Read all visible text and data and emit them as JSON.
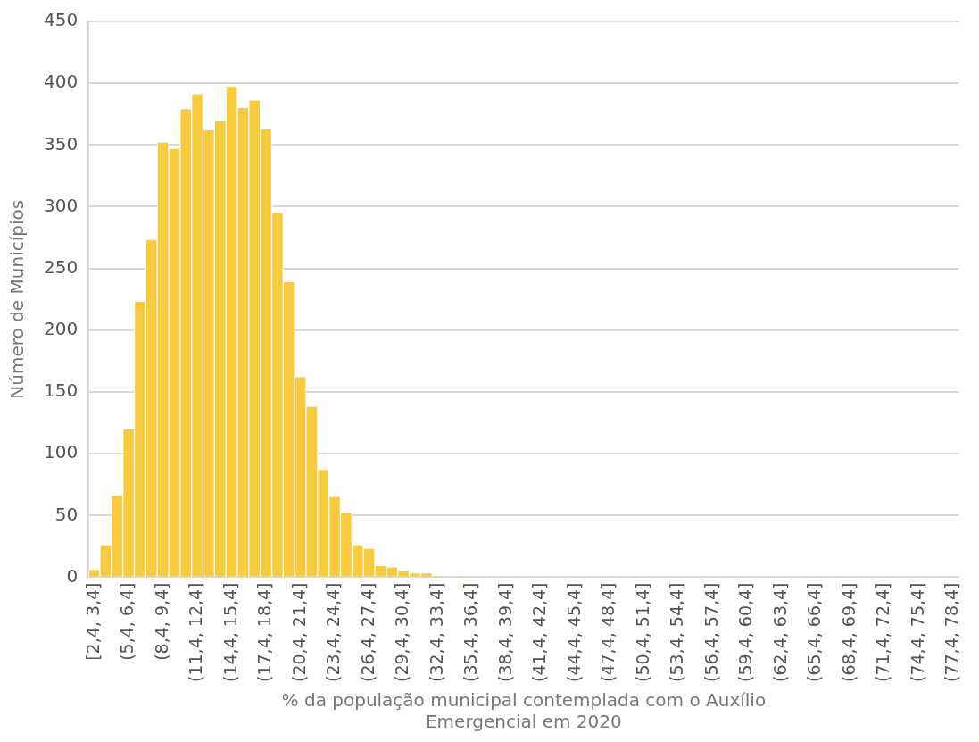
{
  "chart_data": {
    "type": "bar",
    "xlabel": [
      "% da população municipal contemplada com o Auxílio",
      "Emergencial em 2020"
    ],
    "ylabel": "Número de Municípios",
    "categories": [
      "[2,4, 3,4]",
      null,
      null,
      "(5,4, 6,4]",
      null,
      null,
      "(8,4, 9,4]",
      null,
      null,
      "(11,4, 12,4]",
      null,
      null,
      "(14,4, 15,4]",
      null,
      null,
      "(17,4, 18,4]",
      null,
      null,
      "(20,4, 21,4]",
      null,
      null,
      "(23,4, 24,4]",
      null,
      null,
      "(26,4, 27,4]",
      null,
      null,
      "(29,4, 30,4]",
      null,
      null,
      "(32,4, 33,4]",
      null,
      null,
      "(35,4, 36,4]",
      null,
      null,
      "(38,4, 39,4]",
      null,
      null,
      "(41,4, 42,4]",
      null,
      null,
      "(44,4, 45,4]",
      null,
      null,
      "(47,4, 48,4]",
      null,
      null,
      "(50,4, 51,4]",
      null,
      null,
      "(53,4, 54,4]",
      null,
      null,
      "(56,4, 57,4]",
      null,
      null,
      "(59,4, 60,4]",
      null,
      null,
      "(62,4, 63,4]",
      null,
      null,
      "(65,4, 66,4]",
      null,
      null,
      "(68,4, 69,4]",
      null,
      null,
      "(71,4, 72,4]",
      null,
      null,
      "(74,4, 75,4]",
      null,
      null,
      "(77,4, 78,4]"
    ],
    "values": [
      6,
      26,
      66,
      120,
      223,
      273,
      352,
      347,
      379,
      391,
      362,
      369,
      397,
      380,
      386,
      363,
      295,
      239,
      162,
      138,
      87,
      65,
      52,
      26,
      23,
      9,
      8,
      5,
      3,
      3,
      1,
      0,
      1,
      0,
      0,
      0,
      0,
      0,
      0,
      0,
      0,
      0,
      0,
      0,
      0,
      0,
      0,
      0,
      0,
      0,
      0,
      0,
      0,
      0,
      0,
      0,
      0,
      0,
      0,
      0,
      0,
      0,
      0,
      0,
      0,
      0,
      0,
      0,
      0,
      0,
      0,
      0,
      0,
      0,
      0,
      0
    ],
    "color": "#f8cb3e",
    "ylim": [
      0,
      450
    ],
    "yticks": [
      0,
      50,
      100,
      150,
      200,
      250,
      300,
      350,
      400,
      450
    ],
    "grid": "y"
  }
}
